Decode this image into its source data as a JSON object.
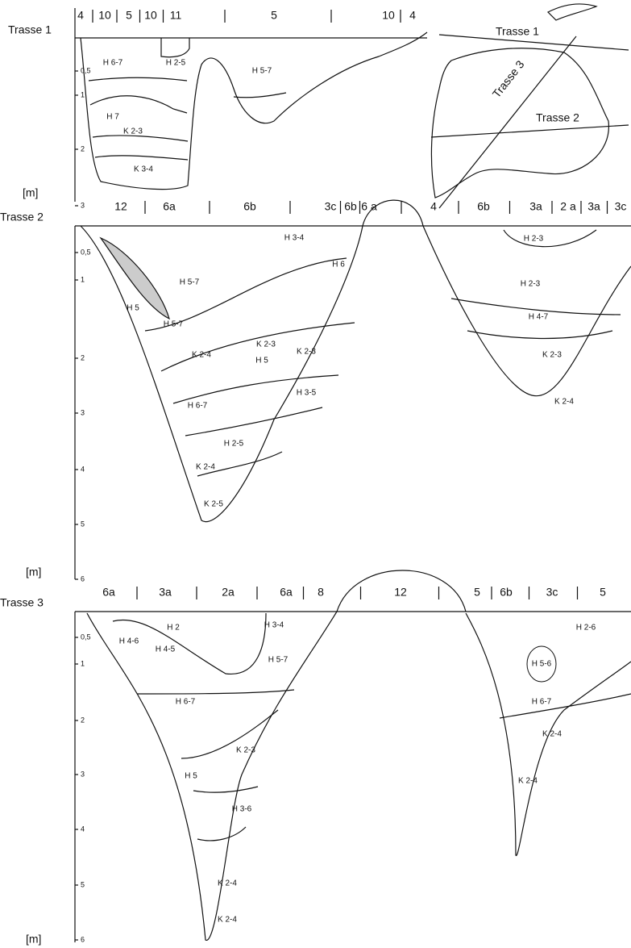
{
  "map": {
    "labels": [
      "Trasse 1",
      "Trasse 2",
      "Trasse 3"
    ]
  },
  "sections": [
    {
      "title": "Trasse 1",
      "unit": "[m]",
      "depth_labels": [
        "0,5",
        "1",
        "2",
        "3"
      ],
      "columns": [
        "4",
        "10",
        "5",
        "10",
        "11",
        "5",
        "10",
        "4"
      ],
      "layers": [
        "H 6-7",
        "H 2-5",
        "H 5-7",
        "H 7",
        "K 2-3",
        "K 3-4"
      ]
    },
    {
      "title": "Trasse 2",
      "unit": "[m]",
      "depth_labels": [
        "0,5",
        "1",
        "2",
        "3",
        "4",
        "5",
        "6"
      ],
      "columns": [
        "12",
        "6a",
        "6b",
        "3c",
        "6b",
        "6 a",
        "4",
        "6b",
        "3a",
        "2 a",
        "3a",
        "3c"
      ],
      "layers": [
        "H 3-4",
        "H 6",
        "H 5-7",
        "H 5",
        "H 5-7",
        "K 2-4",
        "K 2-3",
        "K 2-3",
        "H 5",
        "H 3-5",
        "H 6-7",
        "H 2-5",
        "K 2-4",
        "K 2-5",
        "H 2-3",
        "H 2-3",
        "H 4-7",
        "K 2-3",
        "K 2-4"
      ]
    },
    {
      "title": "Trasse 3",
      "unit": "[m]",
      "depth_labels": [
        "0,5",
        "1",
        "2",
        "3",
        "4",
        "5",
        "6"
      ],
      "columns": [
        "6a",
        "3a",
        "2a",
        "6a",
        "8",
        "12",
        "5",
        "6b",
        "3c",
        "5"
      ],
      "layers": [
        "H 2",
        "H 3-4",
        "H 4-6",
        "H 4-5",
        "H 5-7",
        "H 6-7",
        "K 2-3",
        "H 5",
        "H 3-6",
        "K 2-4",
        "K 2-4",
        "H 2-6",
        "H 5-6",
        "H 6-7",
        "K 2-4",
        "K 2-4"
      ]
    }
  ]
}
